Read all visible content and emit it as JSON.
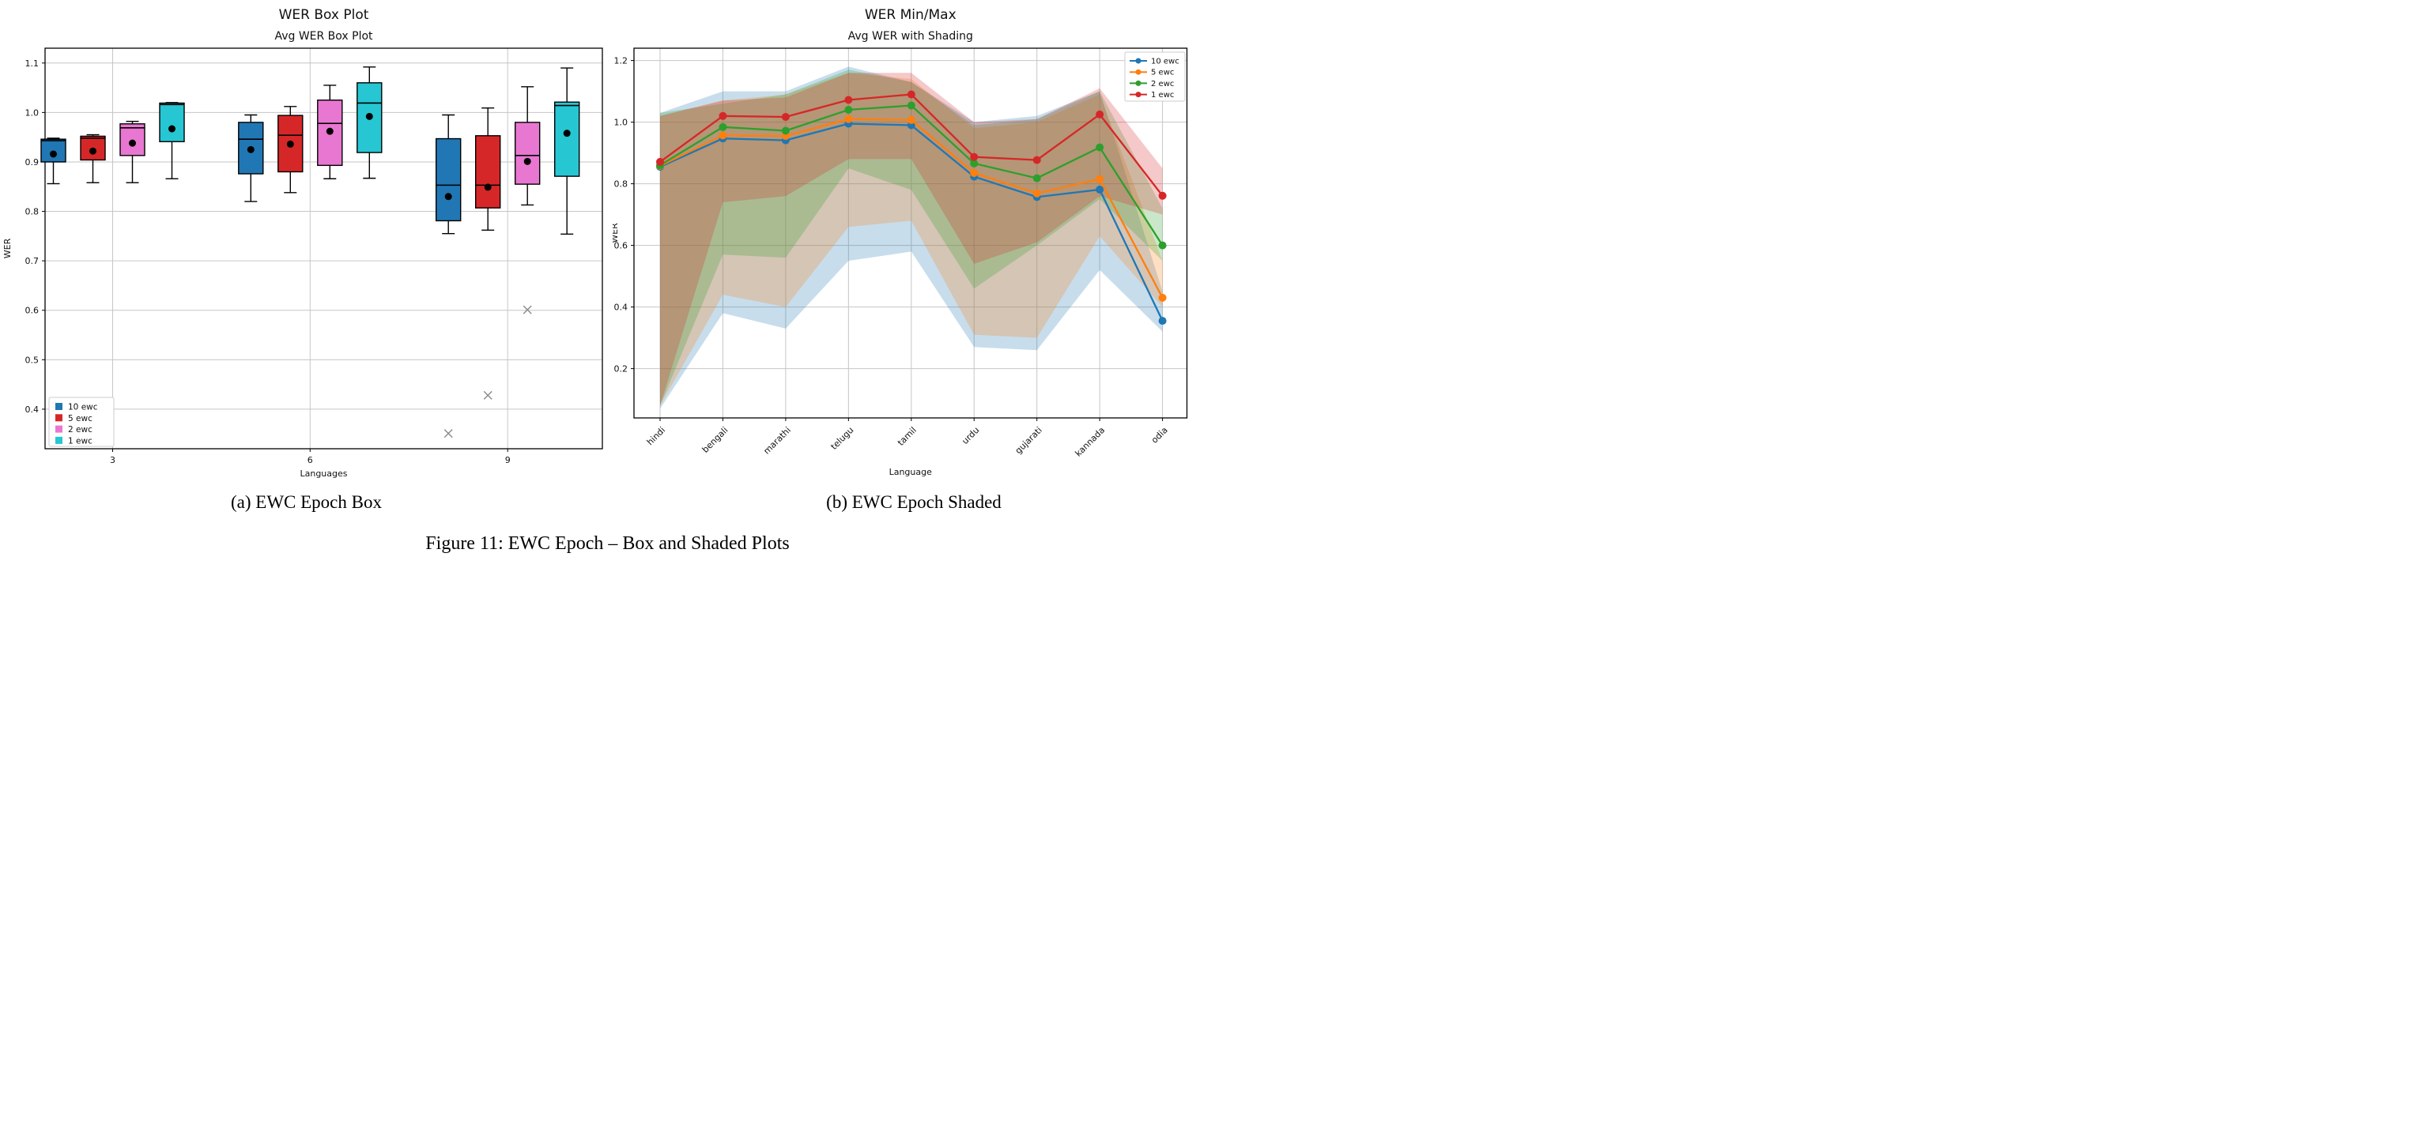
{
  "page": {
    "caption_a": "(a) EWC Epoch Box",
    "caption_b": "(b) EWC Epoch Shaded",
    "figure_caption": "Figure 11: EWC Epoch – Box and Shaded Plots"
  },
  "chart_data": [
    {
      "type": "box",
      "title": "WER Box Plot",
      "subtitle": "Avg WER Box Plot",
      "xlabel": "Languages",
      "ylabel": "WER",
      "x_ticks": [
        "3",
        "6",
        "9"
      ],
      "y_ticks": [
        0.4,
        0.5,
        0.6,
        0.7,
        0.8,
        0.9,
        1.0,
        1.1
      ],
      "ylim": [
        0.32,
        1.13
      ],
      "grid": true,
      "legend_position": "bottom-left",
      "legend": [
        {
          "label": "10 ewc",
          "color": "#2077b4"
        },
        {
          "label": "5 ewc",
          "color": "#d62728"
        },
        {
          "label": "2 ewc",
          "color": "#e877d1"
        },
        {
          "label": "1 ewc",
          "color": "#26c6d3"
        }
      ],
      "series": [
        {
          "name": "10 ewc",
          "color": "#2077b4",
          "boxes": [
            {
              "whislo": 0.856,
              "q1": 0.9,
              "med": 0.943,
              "q3": 0.946,
              "whishi": 0.948,
              "mean": 0.916,
              "fliers": []
            },
            {
              "whislo": 0.82,
              "q1": 0.876,
              "med": 0.946,
              "q3": 0.98,
              "whishi": 0.995,
              "mean": 0.925,
              "fliers": []
            },
            {
              "whislo": 0.755,
              "q1": 0.781,
              "med": 0.853,
              "q3": 0.947,
              "whishi": 0.995,
              "mean": 0.83,
              "fliers": [
                0.351
              ]
            }
          ]
        },
        {
          "name": "5 ewc",
          "color": "#d62728",
          "boxes": [
            {
              "whislo": 0.858,
              "q1": 0.904,
              "med": 0.948,
              "q3": 0.952,
              "whishi": 0.955,
              "mean": 0.922,
              "fliers": []
            },
            {
              "whislo": 0.838,
              "q1": 0.88,
              "med": 0.954,
              "q3": 0.994,
              "whishi": 1.012,
              "mean": 0.936,
              "fliers": []
            },
            {
              "whislo": 0.762,
              "q1": 0.807,
              "med": 0.853,
              "q3": 0.953,
              "whishi": 1.009,
              "mean": 0.849,
              "fliers": [
                0.428
              ]
            }
          ]
        },
        {
          "name": "2 ewc",
          "color": "#e877d1",
          "boxes": [
            {
              "whislo": 0.858,
              "q1": 0.913,
              "med": 0.969,
              "q3": 0.977,
              "whishi": 0.982,
              "mean": 0.938,
              "fliers": []
            },
            {
              "whislo": 0.866,
              "q1": 0.893,
              "med": 0.978,
              "q3": 1.025,
              "whishi": 1.055,
              "mean": 0.962,
              "fliers": []
            },
            {
              "whislo": 0.813,
              "q1": 0.855,
              "med": 0.913,
              "q3": 0.98,
              "whishi": 1.052,
              "mean": 0.901,
              "fliers": [
                0.601
              ]
            }
          ]
        },
        {
          "name": "1 ewc",
          "color": "#26c6d3",
          "boxes": [
            {
              "whislo": 0.866,
              "q1": 0.941,
              "med": 1.016,
              "q3": 1.019,
              "whishi": 1.02,
              "mean": 0.967,
              "fliers": []
            },
            {
              "whislo": 0.867,
              "q1": 0.919,
              "med": 1.019,
              "q3": 1.06,
              "whishi": 1.092,
              "mean": 0.992,
              "fliers": []
            },
            {
              "whislo": 0.754,
              "q1": 0.871,
              "med": 1.014,
              "q3": 1.021,
              "whishi": 1.09,
              "mean": 0.958,
              "fliers": []
            }
          ]
        }
      ]
    },
    {
      "type": "line",
      "title": "WER Min/Max",
      "subtitle": "Avg WER with Shading",
      "xlabel": "Language",
      "ylabel": "WER",
      "categories": [
        "hindi",
        "bengali",
        "marathi",
        "telugu",
        "tamil",
        "urdu",
        "gujarati",
        "kannada",
        "odia"
      ],
      "y_ticks": [
        0.2,
        0.4,
        0.6,
        0.8,
        1.0,
        1.2
      ],
      "ylim": [
        0.04,
        1.24
      ],
      "grid": true,
      "legend_position": "top-right",
      "band_opacity": 0.25,
      "series": [
        {
          "name": "10 ewc",
          "color": "#1f77b4",
          "avg": [
            0.855,
            0.947,
            0.941,
            0.995,
            0.99,
            0.823,
            0.757,
            0.781,
            0.355
          ],
          "min": [
            0.07,
            0.38,
            0.33,
            0.55,
            0.58,
            0.27,
            0.26,
            0.52,
            0.32
          ],
          "max": [
            1.03,
            1.1,
            1.1,
            1.18,
            1.13,
            1.0,
            1.02,
            1.1,
            0.45
          ]
        },
        {
          "name": "5 ewc",
          "color": "#ff7f0e",
          "avg": [
            0.858,
            0.957,
            0.955,
            1.01,
            1.007,
            0.835,
            0.769,
            0.815,
            0.43
          ],
          "min": [
            0.08,
            0.44,
            0.4,
            0.66,
            0.68,
            0.31,
            0.3,
            0.63,
            0.4
          ],
          "max": [
            1.02,
            1.07,
            1.09,
            1.16,
            1.14,
            0.98,
            1.0,
            1.09,
            0.55
          ]
        },
        {
          "name": "2 ewc",
          "color": "#2ca02c",
          "avg": [
            0.86,
            0.984,
            0.972,
            1.04,
            1.054,
            0.866,
            0.818,
            0.918,
            0.6
          ],
          "min": [
            0.08,
            0.57,
            0.56,
            0.85,
            0.78,
            0.46,
            0.6,
            0.75,
            0.55
          ],
          "max": [
            1.03,
            1.06,
            1.09,
            1.17,
            1.13,
            0.99,
            1.01,
            1.1,
            0.72
          ]
        },
        {
          "name": "1 ewc",
          "color": "#d62728",
          "avg": [
            0.871,
            1.02,
            1.017,
            1.072,
            1.09,
            0.887,
            0.877,
            1.025,
            0.761
          ],
          "min": [
            0.08,
            0.74,
            0.76,
            0.88,
            0.88,
            0.54,
            0.61,
            0.76,
            0.7
          ],
          "max": [
            1.02,
            1.07,
            1.08,
            1.16,
            1.16,
            1.0,
            1.01,
            1.11,
            0.85
          ]
        }
      ]
    }
  ]
}
